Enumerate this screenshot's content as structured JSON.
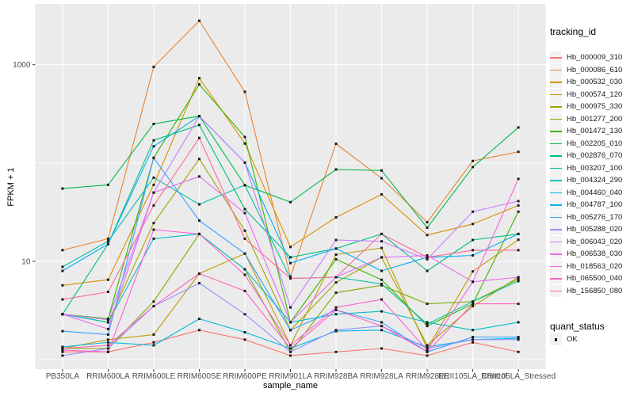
{
  "figure": {
    "background": "#FFFFFF",
    "panel_background": "#EBEBEB",
    "grid_color": "#FFFFFF",
    "tick_text_color": "#4D4D4D",
    "tick_mark_color": "#333333",
    "marker_color": "#1A1A1A"
  },
  "axes": {
    "x_title": "sample_name",
    "y_title": "FPKM + 1"
  },
  "legend": {
    "tracking_title": "tracking_id",
    "quant_title": "quant_status",
    "quant_items": [
      {
        "label": "OK",
        "marker": "black-square"
      }
    ]
  },
  "chart_data": {
    "type": "line",
    "title": "",
    "xlabel": "sample_name",
    "ylabel": "FPKM + 1",
    "x_type": "categorical",
    "y_scale": "log10",
    "ylim": [
      0.8,
      4200
    ],
    "grid": true,
    "legend_position": "right",
    "point_marker": "small black square (quant_status OK)",
    "y_ticks": [
      {
        "value": 1000,
        "label": "1000"
      },
      {
        "value": 10,
        "label": "10"
      }
    ],
    "y_minor_gridlines": [
      1,
      100
    ],
    "categories": [
      "PB350LA",
      "RRIM600LA",
      "RRIM600LE",
      "RRIM600SE",
      "RRIM600PE",
      "RRIM901LA",
      "RRIM928BA",
      "RRIM928LA",
      "RRIM928LE",
      "RRII105LA_Control",
      "RRII105LA_Stressed"
    ],
    "series": [
      {
        "name": "Hb_000009_310",
        "color": "#F8766D",
        "values": [
          1.2,
          1.2,
          1.5,
          2.0,
          1.6,
          1.1,
          1.2,
          1.3,
          1.1,
          1.5,
          1.2
        ]
      },
      {
        "name": "Hb_000086_610",
        "color": "#EA8331",
        "values": [
          13,
          17,
          950,
          2800,
          530,
          7,
          157,
          70,
          25,
          105,
          130
        ]
      },
      {
        "name": "Hb_000532_030",
        "color": "#D89000",
        "values": [
          5.7,
          6.5,
          60,
          730,
          158,
          14,
          28,
          48,
          18.5,
          24,
          37
        ]
      },
      {
        "name": "Hb_000574_120",
        "color": "#C09B00",
        "values": [
          1.3,
          1.6,
          1.8,
          7.5,
          12,
          1.4,
          11.7,
          13.7,
          1.3,
          7.9,
          16.6
        ]
      },
      {
        "name": "Hb_000975_330",
        "color": "#A3A500",
        "values": [
          2.9,
          2.4,
          24.5,
          110,
          20.5,
          2.0,
          6.1,
          11,
          1.4,
          3.5,
          6.9
        ]
      },
      {
        "name": "Hb_001277_200",
        "color": "#7CAE00",
        "values": [
          1.3,
          1.3,
          3.9,
          19,
          8.3,
          1.2,
          4.8,
          5.7,
          3.7,
          3.9,
          6.6
        ]
      },
      {
        "name": "Hb_001472_130",
        "color": "#39B600",
        "values": [
          2.9,
          2.6,
          113,
          630,
          184,
          2.4,
          10.5,
          6.5,
          2.2,
          3.7,
          32
        ]
      },
      {
        "name": "Hb_002205_010",
        "color": "#00BB4E",
        "values": [
          55,
          60,
          250,
          300,
          59.5,
          40,
          86,
          84,
          22,
          91,
          230
        ]
      },
      {
        "name": "Hb_002876_070",
        "color": "#00BF7D",
        "values": [
          2.9,
          15,
          170,
          244,
          34,
          11,
          13.5,
          19,
          8,
          16.5,
          19
        ]
      },
      {
        "name": "Hb_003207_100",
        "color": "#00C1A3",
        "values": [
          8.8,
          16,
          71,
          38,
          59.5,
          6.7,
          6.9,
          5.9,
          2.3,
          3.9,
          6.3
        ]
      },
      {
        "name": "Hb_004324_290",
        "color": "#00BFC4",
        "values": [
          2.9,
          2.4,
          17,
          19,
          8.3,
          2.4,
          2.9,
          3.1,
          2.4,
          2.0,
          2.4
        ]
      },
      {
        "name": "Hb_004460_040",
        "color": "#00BAE0",
        "values": [
          1.35,
          1.5,
          1.4,
          2.6,
          1.9,
          1.3,
          1.95,
          2.0,
          1.35,
          1.6,
          1.65
        ]
      },
      {
        "name": "Hb_004787_100",
        "color": "#00B0F6",
        "values": [
          8,
          15,
          148,
          300,
          101,
          9.6,
          13.5,
          8,
          11,
          11.5,
          19
        ]
      },
      {
        "name": "Hb_005276_170",
        "color": "#35A2FF",
        "values": [
          1.95,
          1.8,
          113,
          26,
          12,
          2.0,
          3.2,
          2.4,
          1.2,
          1.7,
          1.7
        ]
      },
      {
        "name": "Hb_005288_020",
        "color": "#9590FF",
        "values": [
          1.1,
          1.3,
          3.5,
          6.0,
          2.9,
          1.2,
          2.0,
          2.2,
          1.3,
          1.6,
          1.6
        ]
      },
      {
        "name": "Hb_006043_020",
        "color": "#C77CFF",
        "values": [
          2.9,
          2.55,
          50,
          300,
          101,
          3.4,
          16.5,
          16,
          10.5,
          32,
          41
        ]
      },
      {
        "name": "Hb_006538_030",
        "color": "#E76BF3",
        "values": [
          2.9,
          2.05,
          50,
          73,
          31,
          2.4,
          6.9,
          11,
          11.5,
          6.2,
          6.9
        ]
      },
      {
        "name": "Hb_018563_020",
        "color": "#FA62DB",
        "values": [
          1.25,
          1.2,
          21,
          19,
          7.3,
          1.4,
          3.4,
          4.1,
          1.25,
          6.2,
          69
        ]
      },
      {
        "name": "Hb_065500_040",
        "color": "#FF62BC",
        "values": [
          1.3,
          1.4,
          3.5,
          7.5,
          5.0,
          1.3,
          3.2,
          2.2,
          1.2,
          3.7,
          3.7
        ]
      },
      {
        "name": "Hb_156850_080",
        "color": "#FF6A98",
        "values": [
          4.1,
          4.9,
          37,
          180,
          17,
          6.7,
          6.9,
          19,
          11,
          13,
          13
        ]
      }
    ]
  }
}
